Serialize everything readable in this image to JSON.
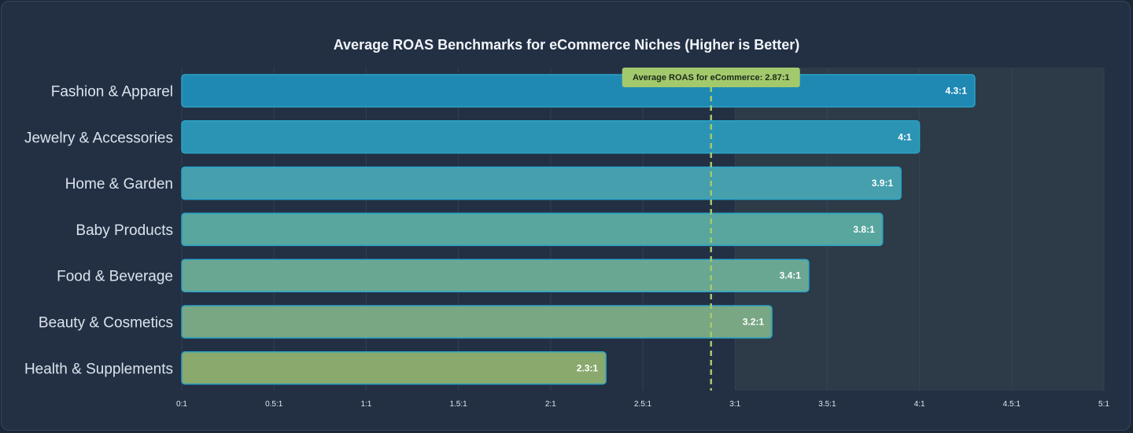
{
  "chart_data": {
    "type": "bar",
    "orientation": "horizontal",
    "title": "Average ROAS Benchmarks for eCommerce Niches (Higher is Better)",
    "categories": [
      "Fashion & Apparel",
      "Jewelry & Accessories",
      "Home & Garden",
      "Baby Products",
      "Food & Beverage",
      "Beauty & Cosmetics",
      "Health & Supplements"
    ],
    "values": [
      4.3,
      4.0,
      3.9,
      3.8,
      3.4,
      3.2,
      2.3
    ],
    "value_labels": [
      "4.3:1",
      "4:1",
      "3.9:1",
      "3.8:1",
      "3.4:1",
      "3.2:1",
      "2.3:1"
    ],
    "bar_colors": [
      "#1f89b3",
      "#2b94b4",
      "#459fad",
      "#58a69e",
      "#6aa793",
      "#79a783",
      "#89a96d"
    ],
    "xlim": [
      0,
      5
    ],
    "x_ticks": [
      0,
      0.5,
      1,
      1.5,
      2,
      2.5,
      3,
      3.5,
      4,
      4.5,
      5
    ],
    "x_tick_labels": [
      "0:1",
      "0.5:1",
      "1:1",
      "1.5:1",
      "2:1",
      "2.5:1",
      "3:1",
      "3.5:1",
      "4:1",
      "4.5:1",
      "5:1"
    ],
    "xlabel": "",
    "ylabel": "",
    "grid": true,
    "reference_line": {
      "value": 2.87,
      "label": "Average ROAS for eCommerce: 2.87:1",
      "color": "#a3c96d"
    },
    "shaded_region_from": 3
  }
}
